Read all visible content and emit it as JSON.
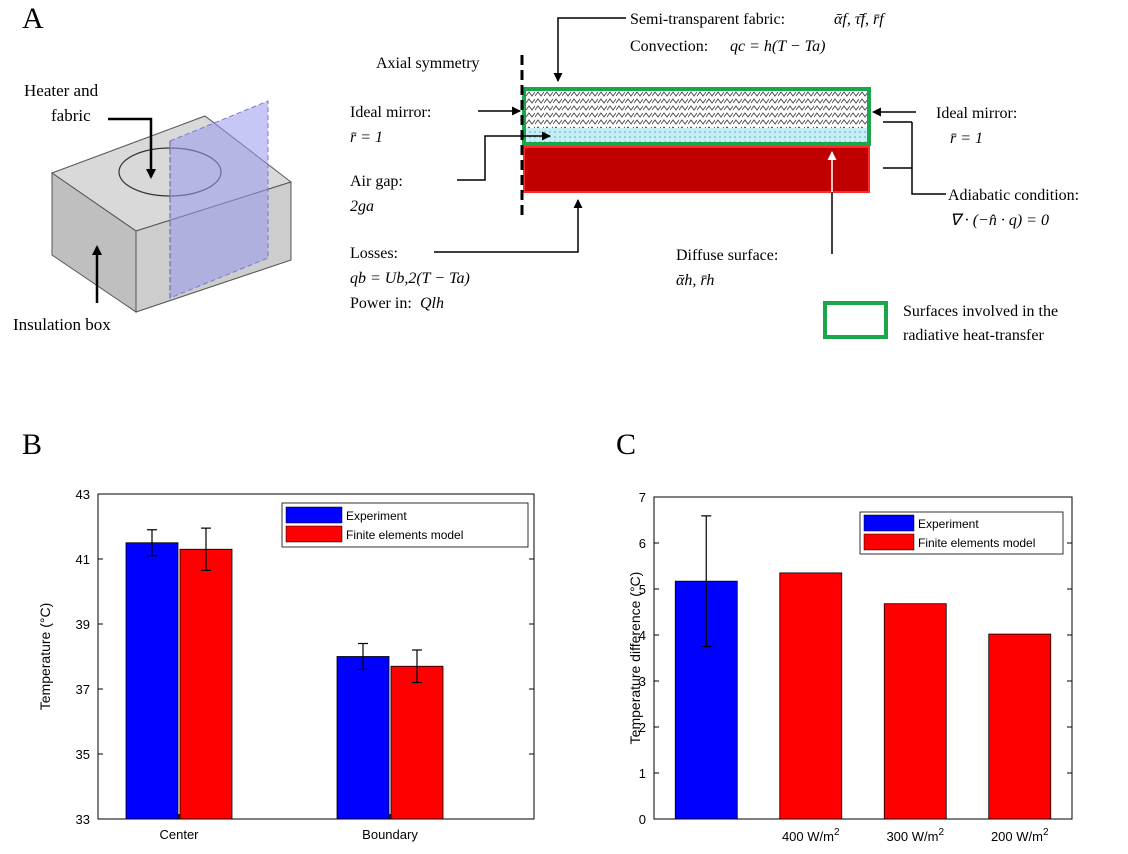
{
  "panels": {
    "a": "A",
    "b": "B",
    "c": "C"
  },
  "panel_a": {
    "box_labels": {
      "heater_line1": "Heater and",
      "heater_line2": "fabric",
      "insulation": "Insulation box"
    },
    "axial_symmetry": "Axial symmetry",
    "fabric": {
      "label": "Semi-transparent fabric:",
      "symbols": "ᾱf, τ̄f, r̄f"
    },
    "convection": {
      "label": "Convection:",
      "formula": "qc = h(T − Ta)"
    },
    "mirror_left": {
      "label": "Ideal mirror:",
      "formula": "r̄ = 1"
    },
    "mirror_right": {
      "label": "Ideal mirror:",
      "formula": "r̄ = 1"
    },
    "air_gap": {
      "label": "Air gap:",
      "formula": "2ga"
    },
    "losses": {
      "label": "Losses:",
      "formula": "qb = Ub,2(T − Ta)"
    },
    "power_in": {
      "label": "Power in:",
      "formula": "Qlh"
    },
    "diffuse": {
      "label": "Diffuse surface:",
      "formula": "ᾱh, r̄h"
    },
    "adiabatic": {
      "label": "Adiabatic condition:",
      "formula": "∇ · (−n̂ · q) = 0"
    },
    "legend": {
      "line1": "Surfaces involved in the",
      "line2": "radiative heat-transfer"
    },
    "colors": {
      "fabric_border": "#1aa64a",
      "heater_fill": "#c00000",
      "heater_border": "#ff2a2a",
      "gap_fill": "#bfe9f2",
      "plane": "#9999ee"
    }
  },
  "chart_data": [
    {
      "type": "bar",
      "panel": "B",
      "ylabel": "Temperature (°C)",
      "ylim": [
        33,
        43
      ],
      "yticks": [
        33,
        35,
        37,
        39,
        41,
        43
      ],
      "categories": [
        "Center",
        "Boundary"
      ],
      "series": [
        {
          "name": "Experiment",
          "color": "#0000ff",
          "values": [
            41.5,
            38.0
          ],
          "errors": [
            0.4,
            0.4
          ]
        },
        {
          "name": "Finite elements model",
          "color": "#ff0000",
          "values": [
            41.3,
            37.7
          ],
          "errors": [
            0.65,
            0.5
          ]
        }
      ],
      "legend": "top-right",
      "grid": false
    },
    {
      "type": "bar",
      "panel": "C",
      "ylabel": "Temperature difference (°C)",
      "ylim": [
        0,
        7
      ],
      "yticks": [
        0,
        1,
        2,
        3,
        4,
        5,
        6,
        7
      ],
      "bars": [
        {
          "label": "",
          "series": "Experiment",
          "color": "#0000ff",
          "value": 5.17,
          "error": 1.42
        },
        {
          "label": "400 W/m",
          "series": "Finite elements model",
          "color": "#ff0000",
          "value": 5.35
        },
        {
          "label": "300 W/m",
          "series": "Finite elements model",
          "color": "#ff0000",
          "value": 4.68
        },
        {
          "label": "200 W/m",
          "series": "Finite elements model",
          "color": "#ff0000",
          "value": 4.02
        }
      ],
      "unit_superscript": "2",
      "legend_entries": [
        {
          "name": "Experiment",
          "color": "#0000ff"
        },
        {
          "name": "Finite elements model",
          "color": "#ff0000"
        }
      ],
      "legend": "top-right",
      "grid": false
    }
  ]
}
